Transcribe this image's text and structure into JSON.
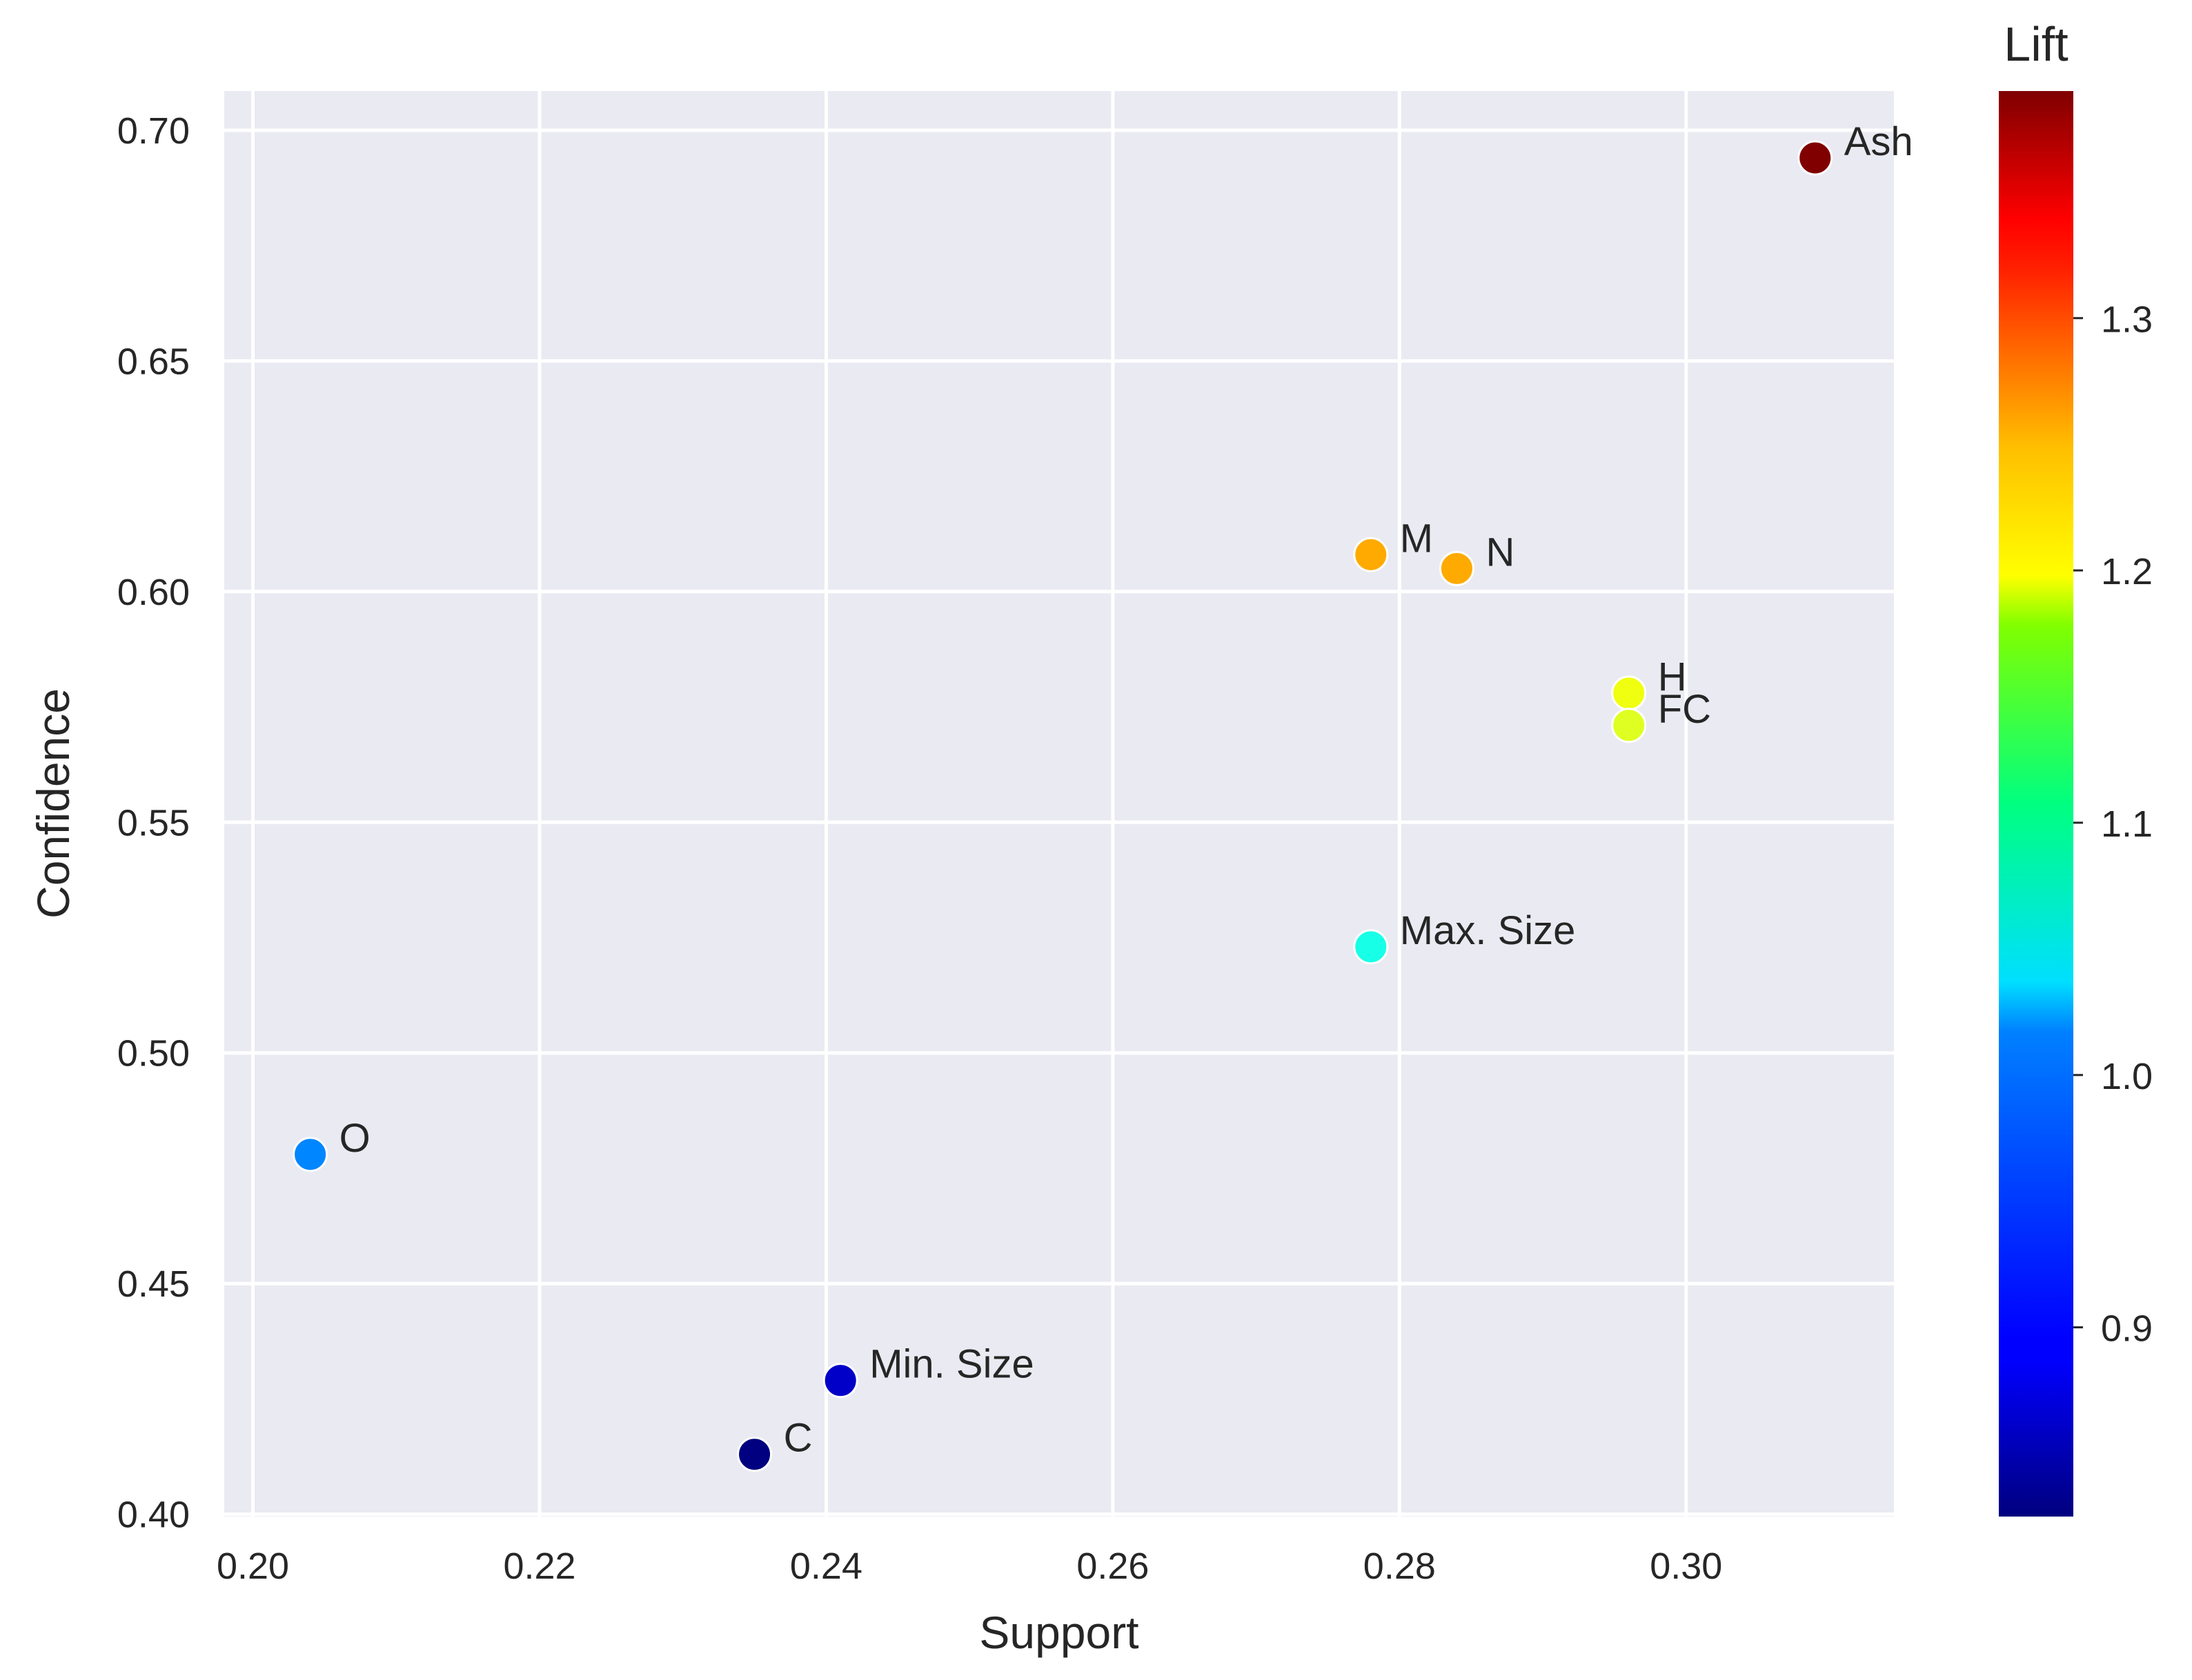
{
  "chart_data": {
    "type": "scatter",
    "xlabel": "Support",
    "ylabel": "Confidence",
    "xlim": [
      0.198,
      0.3145
    ],
    "ylim": [
      0.3995,
      0.7085
    ],
    "xticks": [
      "0.20",
      "0.22",
      "0.24",
      "0.26",
      "0.28",
      "0.30"
    ],
    "yticks": [
      "0.40",
      "0.45",
      "0.50",
      "0.55",
      "0.60",
      "0.65",
      "0.70"
    ],
    "grid": true,
    "colorbar": {
      "title": "Lift",
      "colormap": "jet",
      "range": [
        0.825,
        1.39
      ],
      "ticks": [
        "0.9",
        "1.0",
        "1.1",
        "1.2",
        "1.3"
      ]
    },
    "points": [
      {
        "label": "Ash",
        "x": 0.309,
        "y": 0.694,
        "lift": 1.39
      },
      {
        "label": "M",
        "x": 0.278,
        "y": 0.608,
        "lift": 1.225
      },
      {
        "label": "N",
        "x": 0.284,
        "y": 0.605,
        "lift": 1.225
      },
      {
        "label": "H",
        "x": 0.296,
        "y": 0.578,
        "lift": 1.17
      },
      {
        "label": "FC",
        "x": 0.296,
        "y": 0.571,
        "lift": 1.16
      },
      {
        "label": "Max. Size",
        "x": 0.278,
        "y": 0.523,
        "lift": 1.05
      },
      {
        "label": "O",
        "x": 0.204,
        "y": 0.478,
        "lift": 0.97
      },
      {
        "label": "Min. Size",
        "x": 0.241,
        "y": 0.429,
        "lift": 0.865
      },
      {
        "label": "C",
        "x": 0.235,
        "y": 0.413,
        "lift": 0.825
      }
    ]
  }
}
